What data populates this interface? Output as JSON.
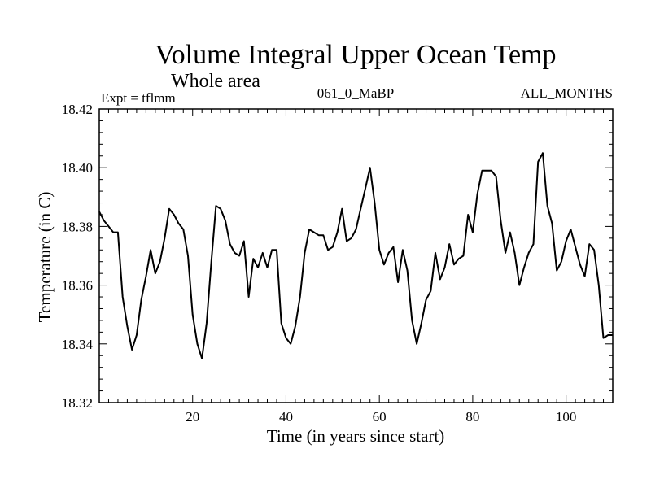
{
  "chart_data": {
    "type": "line",
    "title": "Volume Integral Upper Ocean Temp",
    "subtitle": "Whole area",
    "experiment_label": "Expt = tflmm",
    "run_label": "061_0_MaBP",
    "period_label": "ALL_MONTHS",
    "xlabel": "Time (in years since start)",
    "ylabel": "Temperature (in C)",
    "xlim": [
      0,
      110
    ],
    "ylim": [
      18.32,
      18.42
    ],
    "x_ticks": [
      20,
      40,
      60,
      80,
      100
    ],
    "x_tick_labels": [
      "20",
      "40",
      "60",
      "80",
      "100"
    ],
    "y_ticks": [
      18.32,
      18.34,
      18.36,
      18.38,
      18.4,
      18.42
    ],
    "y_tick_labels": [
      "18.32",
      "18.34",
      "18.36",
      "18.38",
      "18.40",
      "18.42"
    ],
    "grid": false,
    "series": [
      {
        "name": "Volume Integral Upper Ocean Temp",
        "x": [
          0,
          1,
          2,
          3,
          4,
          5,
          6,
          7,
          8,
          9,
          10,
          11,
          12,
          13,
          14,
          15,
          16,
          17,
          18,
          19,
          20,
          21,
          22,
          23,
          24,
          25,
          26,
          27,
          28,
          29,
          30,
          31,
          32,
          33,
          34,
          35,
          36,
          37,
          38,
          39,
          40,
          41,
          42,
          43,
          44,
          45,
          46,
          47,
          48,
          49,
          50,
          51,
          52,
          53,
          54,
          55,
          56,
          57,
          58,
          59,
          60,
          61,
          62,
          63,
          64,
          65,
          66,
          67,
          68,
          69,
          70,
          71,
          72,
          73,
          74,
          75,
          76,
          77,
          78,
          79,
          80,
          81,
          82,
          83,
          84,
          85,
          86,
          87,
          88,
          89,
          90,
          91,
          92,
          93,
          94,
          95,
          96,
          97,
          98,
          99,
          100,
          101,
          102,
          103,
          104,
          105,
          106,
          107,
          108,
          109,
          110
        ],
        "values": [
          18.385,
          18.382,
          18.38,
          18.378,
          18.378,
          18.356,
          18.346,
          18.338,
          18.343,
          18.355,
          18.363,
          18.372,
          18.364,
          18.368,
          18.376,
          18.386,
          18.384,
          18.381,
          18.379,
          18.37,
          18.35,
          18.34,
          18.335,
          18.347,
          18.368,
          18.387,
          18.386,
          18.382,
          18.374,
          18.371,
          18.37,
          18.375,
          18.356,
          18.369,
          18.366,
          18.371,
          18.366,
          18.372,
          18.372,
          18.347,
          18.342,
          18.34,
          18.346,
          18.356,
          18.371,
          18.379,
          18.378,
          18.377,
          18.377,
          18.372,
          18.373,
          18.378,
          18.386,
          18.375,
          18.376,
          18.379,
          18.386,
          18.393,
          18.4,
          18.388,
          18.372,
          18.367,
          18.371,
          18.373,
          18.361,
          18.372,
          18.365,
          18.348,
          18.34,
          18.347,
          18.355,
          18.358,
          18.371,
          18.362,
          18.366,
          18.374,
          18.367,
          18.369,
          18.37,
          18.384,
          18.378,
          18.391,
          18.399,
          18.399,
          18.399,
          18.397,
          18.382,
          18.371,
          18.378,
          18.371,
          18.36,
          18.366,
          18.371,
          18.374,
          18.402,
          18.405,
          18.387,
          18.381,
          18.365,
          18.368,
          18.375,
          18.379,
          18.373,
          18.367,
          18.363,
          18.374,
          18.372,
          18.36,
          18.342,
          18.343,
          18.343
        ]
      }
    ]
  }
}
